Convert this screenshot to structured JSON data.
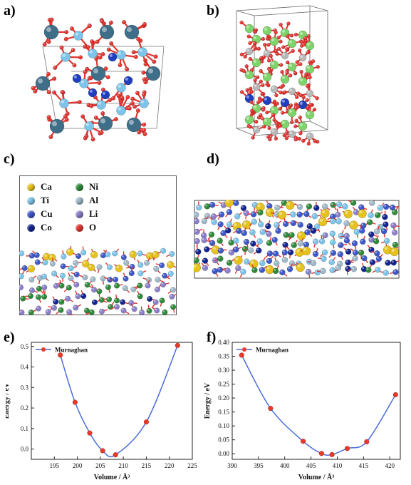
{
  "figure": {
    "panels": {
      "a": {
        "label": "a)"
      },
      "b": {
        "label": "b)"
      },
      "c": {
        "label": "c)"
      },
      "d": {
        "label": "d)"
      },
      "e": {
        "label": "e)"
      },
      "f": {
        "label": "f)"
      }
    },
    "legend": {
      "items": [
        {
          "name": "Ca",
          "color": "#e6c21e"
        },
        {
          "name": "Ti",
          "color": "#7cc4ea"
        },
        {
          "name": "Cu",
          "color": "#3f58c9"
        },
        {
          "name": "Co",
          "color": "#12248f"
        },
        {
          "name": "Ni",
          "color": "#2f8a3a"
        },
        {
          "name": "Al",
          "color": "#9fb8c8"
        },
        {
          "name": "Li",
          "color": "#8a7fc9"
        },
        {
          "name": "O",
          "color": "#e3342f"
        }
      ]
    },
    "colors": {
      "oxygen": "#e3342f",
      "ti": "#7cc4ea",
      "dark_teal": "#3f6e88",
      "blue": "#1f3fbf",
      "green": "#7fd36b",
      "gray": "#b8b8b8",
      "curve": "#4a6bd8",
      "marker": "#e83a2a"
    }
  },
  "chart_data": [
    {
      "id": "e",
      "type": "line",
      "series": [
        {
          "name": "Murnaghan",
          "x": [
            196.3,
            199.5,
            202.7,
            205.5,
            208.3,
            215.0,
            221.8
          ],
          "y": [
            0.458,
            0.228,
            0.078,
            -0.008,
            -0.028,
            0.132,
            0.505
          ]
        }
      ],
      "xlabel": "Volume / Å³",
      "ylabel": "Energy / eV",
      "xlim": [
        190,
        225
      ],
      "ylim": [
        -0.05,
        0.52
      ],
      "xticks": [
        195,
        200,
        205,
        210,
        215,
        220,
        225
      ],
      "yticks": [
        0.0,
        0.1,
        0.2,
        0.3,
        0.4,
        0.5
      ],
      "ytick_labels": [
        "0.0",
        "0.1",
        "0.2",
        "0.3",
        "0.4",
        "0.5"
      ],
      "legend": "top-left"
    },
    {
      "id": "f",
      "type": "line",
      "series": [
        {
          "name": "Murnaghan",
          "x": [
            391.8,
            397.3,
            403.5,
            407.0,
            409.0,
            411.9,
            415.6,
            421.1
          ],
          "y": [
            0.354,
            0.163,
            0.045,
            0.001,
            -0.003,
            0.019,
            0.043,
            0.212
          ]
        }
      ],
      "xlabel": "Volume / Å³",
      "ylabel": "Energy / eV",
      "xlim": [
        390,
        422
      ],
      "ylim": [
        -0.02,
        0.4
      ],
      "xticks": [
        390,
        395,
        400,
        405,
        410,
        415,
        420
      ],
      "yticks": [
        0.0,
        0.05,
        0.1,
        0.15,
        0.2,
        0.25,
        0.3,
        0.35,
        0.4
      ],
      "ytick_labels": [
        "0.00",
        "0.05",
        "0.10",
        "0.15",
        "0.20",
        "0.25",
        "0.30",
        "0.35",
        "0.40"
      ],
      "legend": "top-left"
    }
  ]
}
